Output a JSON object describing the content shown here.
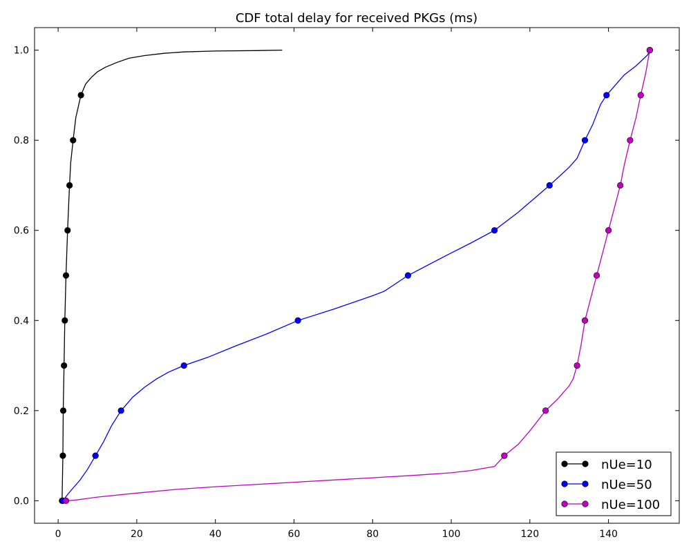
{
  "chart_data": {
    "type": "line",
    "title": "CDF total delay for received PKGs (ms)",
    "xlabel": "",
    "ylabel": "",
    "xlim": [
      -6,
      158
    ],
    "ylim": [
      -0.05,
      1.05
    ],
    "xticks": [
      0,
      20,
      40,
      60,
      80,
      100,
      120,
      140
    ],
    "xtick_labels": [
      "0",
      "20",
      "40",
      "60",
      "80",
      "100",
      "120",
      "140"
    ],
    "yticks": [
      0.0,
      0.2,
      0.4,
      0.6,
      0.8,
      1.0
    ],
    "ytick_labels": [
      "0.0",
      "0.2",
      "0.4",
      "0.6",
      "0.8",
      "1.0"
    ],
    "grid": false,
    "legend_position": "lower-right",
    "series": [
      {
        "name": "nUe=10",
        "color": "#000000",
        "line": [
          [
            1.0,
            0.0
          ],
          [
            1.2,
            0.1
          ],
          [
            1.3,
            0.2
          ],
          [
            1.5,
            0.3
          ],
          [
            1.7,
            0.4
          ],
          [
            2.0,
            0.5
          ],
          [
            2.4,
            0.6
          ],
          [
            2.9,
            0.7
          ],
          [
            3.2,
            0.75
          ],
          [
            3.8,
            0.8
          ],
          [
            4.5,
            0.85
          ],
          [
            5.8,
            0.9
          ],
          [
            7,
            0.925
          ],
          [
            8.5,
            0.94
          ],
          [
            10,
            0.952
          ],
          [
            12,
            0.962
          ],
          [
            15,
            0.973
          ],
          [
            18,
            0.982
          ],
          [
            22,
            0.988
          ],
          [
            27,
            0.993
          ],
          [
            32,
            0.996
          ],
          [
            40,
            0.998
          ],
          [
            50,
            0.999
          ],
          [
            57,
            1.0
          ]
        ],
        "markers": [
          [
            1.0,
            0.0
          ],
          [
            1.2,
            0.1
          ],
          [
            1.3,
            0.2
          ],
          [
            1.5,
            0.3
          ],
          [
            1.7,
            0.4
          ],
          [
            2.0,
            0.5
          ],
          [
            2.4,
            0.6
          ],
          [
            2.9,
            0.7
          ],
          [
            3.8,
            0.8
          ],
          [
            5.8,
            0.9
          ]
        ]
      },
      {
        "name": "nUe=50",
        "color": "#0000ff",
        "line": [
          [
            1.2,
            0.0
          ],
          [
            2.5,
            0.015
          ],
          [
            3.5,
            0.025
          ],
          [
            5.5,
            0.045
          ],
          [
            7.5,
            0.07
          ],
          [
            9.5,
            0.1
          ],
          [
            11.5,
            0.13
          ],
          [
            13.5,
            0.165
          ],
          [
            16,
            0.2
          ],
          [
            19,
            0.23
          ],
          [
            22,
            0.252
          ],
          [
            25,
            0.27
          ],
          [
            28,
            0.285
          ],
          [
            32,
            0.3
          ],
          [
            38,
            0.318
          ],
          [
            45,
            0.343
          ],
          [
            53,
            0.37
          ],
          [
            61,
            0.4
          ],
          [
            70,
            0.425
          ],
          [
            80,
            0.455
          ],
          [
            83,
            0.465
          ],
          [
            89,
            0.5
          ],
          [
            100,
            0.55
          ],
          [
            105,
            0.572
          ],
          [
            111,
            0.6
          ],
          [
            117,
            0.64
          ],
          [
            125,
            0.7
          ],
          [
            130,
            0.74
          ],
          [
            132,
            0.76
          ],
          [
            134,
            0.8
          ],
          [
            136,
            0.835
          ],
          [
            138,
            0.88
          ],
          [
            139.5,
            0.9
          ],
          [
            141.5,
            0.92
          ],
          [
            144,
            0.945
          ],
          [
            147,
            0.965
          ],
          [
            150,
            0.99
          ],
          [
            150.5,
            1.0
          ]
        ],
        "markers": [
          [
            1.2,
            0.0
          ],
          [
            9.5,
            0.1
          ],
          [
            16,
            0.2
          ],
          [
            32,
            0.3
          ],
          [
            61,
            0.4
          ],
          [
            89,
            0.5
          ],
          [
            111,
            0.6
          ],
          [
            125,
            0.7
          ],
          [
            134,
            0.8
          ],
          [
            139.5,
            0.9
          ],
          [
            150.5,
            1.0
          ]
        ]
      },
      {
        "name": "nUe=100",
        "color": "#bf00bf",
        "line": [
          [
            2.0,
            0.0
          ],
          [
            4,
            0.001
          ],
          [
            10,
            0.008
          ],
          [
            20,
            0.017
          ],
          [
            30,
            0.025
          ],
          [
            40,
            0.031
          ],
          [
            50,
            0.036
          ],
          [
            60,
            0.041
          ],
          [
            70,
            0.046
          ],
          [
            80,
            0.051
          ],
          [
            90,
            0.056
          ],
          [
            100,
            0.062
          ],
          [
            105,
            0.067
          ],
          [
            111,
            0.076
          ],
          [
            113.5,
            0.1
          ],
          [
            117,
            0.125
          ],
          [
            120,
            0.155
          ],
          [
            124,
            0.2
          ],
          [
            127,
            0.225
          ],
          [
            130,
            0.255
          ],
          [
            131,
            0.27
          ],
          [
            132,
            0.3
          ],
          [
            133,
            0.345
          ],
          [
            134,
            0.4
          ],
          [
            135.5,
            0.45
          ],
          [
            137,
            0.5
          ],
          [
            138.5,
            0.55
          ],
          [
            140,
            0.6
          ],
          [
            141.5,
            0.65
          ],
          [
            143,
            0.7
          ],
          [
            144,
            0.745
          ],
          [
            145.5,
            0.8
          ],
          [
            147,
            0.85
          ],
          [
            148.2,
            0.9
          ],
          [
            149.5,
            0.95
          ],
          [
            150.5,
            1.0
          ]
        ],
        "markers": [
          [
            2.0,
            0.0
          ],
          [
            113.5,
            0.1
          ],
          [
            124,
            0.2
          ],
          [
            132,
            0.3
          ],
          [
            134,
            0.4
          ],
          [
            137,
            0.5
          ],
          [
            140,
            0.6
          ],
          [
            143,
            0.7
          ],
          [
            145.5,
            0.8
          ],
          [
            148.2,
            0.9
          ],
          [
            150.5,
            1.0
          ]
        ]
      }
    ]
  }
}
